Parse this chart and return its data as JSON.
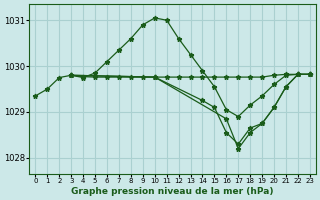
{
  "title": "Graphe pression niveau de la mer (hPa)",
  "bg_color": "#cce8e8",
  "grid_color": "#aad0d0",
  "line_color": "#1a5c1a",
  "xlim": [
    -0.5,
    23.5
  ],
  "ylim": [
    1027.65,
    1031.35
  ],
  "xticks": [
    0,
    1,
    2,
    3,
    4,
    5,
    6,
    7,
    8,
    9,
    10,
    11,
    12,
    13,
    14,
    15,
    16,
    17,
    18,
    19,
    20,
    21,
    22,
    23
  ],
  "yticks": [
    1028,
    1029,
    1030,
    1031
  ],
  "series1_x": [
    0,
    1,
    2,
    3,
    4,
    5,
    6,
    7,
    8,
    9,
    10,
    11,
    12,
    13,
    14,
    15,
    16,
    17,
    18,
    19,
    20,
    21,
    22,
    23
  ],
  "series1_y": [
    1029.35,
    1029.5,
    1029.75,
    1029.8,
    1029.75,
    1029.85,
    1030.1,
    1030.35,
    1030.6,
    1030.9,
    1031.05,
    1031.0,
    1030.6,
    1030.25,
    1029.9,
    1029.55,
    1029.05,
    1028.9,
    1029.15,
    1029.35,
    1029.6,
    1029.8,
    1029.82,
    1029.82
  ],
  "series2_x": [
    3,
    4,
    5,
    6,
    7,
    8,
    9,
    10,
    11,
    12,
    13,
    14,
    15,
    16,
    17,
    18,
    19,
    20,
    21,
    22,
    23
  ],
  "series2_y": [
    1029.8,
    1029.77,
    1029.76,
    1029.76,
    1029.76,
    1029.76,
    1029.76,
    1029.76,
    1029.76,
    1029.76,
    1029.76,
    1029.76,
    1029.76,
    1029.76,
    1029.76,
    1029.76,
    1029.76,
    1029.8,
    1029.82,
    1029.82,
    1029.82
  ],
  "series3_x": [
    3,
    10,
    16,
    17,
    18,
    19,
    20,
    21,
    22,
    23
  ],
  "series3_y": [
    1029.8,
    1029.76,
    1028.85,
    1028.2,
    1028.55,
    1028.75,
    1029.1,
    1029.55,
    1029.82,
    1029.82
  ],
  "series4_x": [
    3,
    10,
    14,
    15,
    16,
    17,
    18,
    19,
    20,
    21,
    22,
    23
  ],
  "series4_y": [
    1029.8,
    1029.76,
    1029.25,
    1029.1,
    1028.55,
    1028.3,
    1028.65,
    1028.75,
    1029.1,
    1029.55,
    1029.82,
    1029.82
  ]
}
